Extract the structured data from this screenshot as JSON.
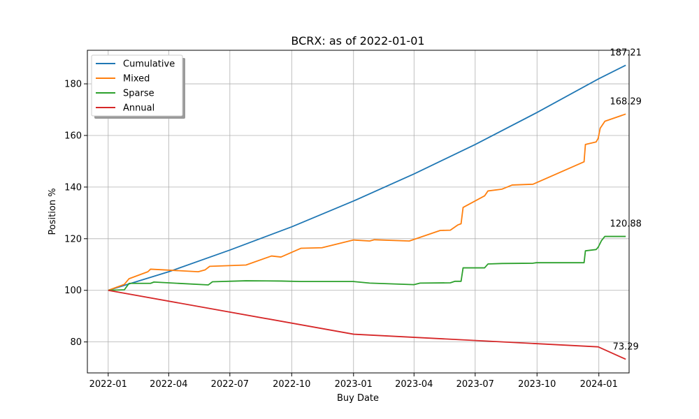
{
  "chart_data": {
    "type": "line",
    "title": "BCRX: as of 2022-01-01",
    "xlabel": "Buy Date",
    "ylabel": "Position %",
    "x_type": "date",
    "xlim": [
      "2021-12-01",
      "2024-02-15"
    ],
    "ylim": [
      68,
      193
    ],
    "x_ticks": [
      "2022-01",
      "2022-04",
      "2022-07",
      "2022-10",
      "2023-01",
      "2023-04",
      "2023-07",
      "2023-10",
      "2024-01"
    ],
    "y_ticks": [
      80,
      100,
      120,
      140,
      160,
      180
    ],
    "grid": true,
    "legend_position": "upper-left",
    "series": [
      {
        "name": "Cumulative",
        "color": "#1f77b4",
        "points": [
          [
            "2022-01-01",
            100
          ],
          [
            "2022-04-01",
            107.2
          ],
          [
            "2022-07-01",
            115.6
          ],
          [
            "2022-10-01",
            124.6
          ],
          [
            "2023-01-01",
            134.6
          ],
          [
            "2023-04-01",
            145.1
          ],
          [
            "2023-07-01",
            156.5
          ],
          [
            "2023-10-01",
            168.9
          ],
          [
            "2024-01-01",
            182.0
          ],
          [
            "2024-02-10",
            187.21
          ]
        ],
        "end_label": "187.21"
      },
      {
        "name": "Mixed",
        "color": "#ff7f0e",
        "points": [
          [
            "2022-01-01",
            100
          ],
          [
            "2022-01-25",
            102.3
          ],
          [
            "2022-02-01",
            104.5
          ],
          [
            "2022-03-01",
            107.2
          ],
          [
            "2022-03-05",
            108.2
          ],
          [
            "2022-05-15",
            107.2
          ],
          [
            "2022-05-25",
            107.9
          ],
          [
            "2022-06-01",
            109.3
          ],
          [
            "2022-07-25",
            109.8
          ],
          [
            "2022-09-01",
            113.3
          ],
          [
            "2022-09-15",
            112.9
          ],
          [
            "2022-10-15",
            116.3
          ],
          [
            "2022-11-15",
            116.5
          ],
          [
            "2023-01-01",
            119.5
          ],
          [
            "2023-01-25",
            119.1
          ],
          [
            "2023-02-01",
            119.6
          ],
          [
            "2023-03-25",
            119.1
          ],
          [
            "2023-05-10",
            123.2
          ],
          [
            "2023-05-25",
            123.3
          ],
          [
            "2023-06-05",
            125.3
          ],
          [
            "2023-06-10",
            125.8
          ],
          [
            "2023-06-13",
            132.1
          ],
          [
            "2023-07-15",
            136.6
          ],
          [
            "2023-07-20",
            138.5
          ],
          [
            "2023-08-10",
            139.2
          ],
          [
            "2023-08-25",
            140.8
          ],
          [
            "2023-09-25",
            141.1
          ],
          [
            "2023-12-10",
            149.8
          ],
          [
            "2023-12-12",
            156.5
          ],
          [
            "2023-12-28",
            157.5
          ],
          [
            "2023-12-31",
            158.9
          ],
          [
            "2024-01-03",
            162.8
          ],
          [
            "2024-01-10",
            165.5
          ],
          [
            "2024-02-10",
            168.29
          ]
        ],
        "end_label": "168.29"
      },
      {
        "name": "Sparse",
        "color": "#2ca02c",
        "points": [
          [
            "2022-01-01",
            100
          ],
          [
            "2022-01-25",
            100.2
          ],
          [
            "2022-02-01",
            102.7
          ],
          [
            "2022-03-05",
            102.7
          ],
          [
            "2022-03-10",
            103.2
          ],
          [
            "2022-05-30",
            102.1
          ],
          [
            "2022-06-05",
            103.3
          ],
          [
            "2022-07-25",
            103.7
          ],
          [
            "2022-09-15",
            103.6
          ],
          [
            "2022-10-15",
            103.4
          ],
          [
            "2023-01-01",
            103.4
          ],
          [
            "2023-01-25",
            102.8
          ],
          [
            "2023-04-01",
            102.2
          ],
          [
            "2023-04-10",
            102.8
          ],
          [
            "2023-05-25",
            102.9
          ],
          [
            "2023-06-01",
            103.5
          ],
          [
            "2023-06-10",
            103.5
          ],
          [
            "2023-06-13",
            108.7
          ],
          [
            "2023-07-15",
            108.7
          ],
          [
            "2023-07-20",
            110.2
          ],
          [
            "2023-08-10",
            110.4
          ],
          [
            "2023-09-25",
            110.5
          ],
          [
            "2023-09-30",
            110.7
          ],
          [
            "2023-12-10",
            110.7
          ],
          [
            "2023-12-12",
            115.3
          ],
          [
            "2023-12-28",
            115.8
          ],
          [
            "2023-12-31",
            116.7
          ],
          [
            "2024-01-05",
            119.3
          ],
          [
            "2024-01-10",
            120.9
          ],
          [
            "2024-02-10",
            120.88
          ]
        ],
        "end_label": "120.88"
      },
      {
        "name": "Annual",
        "color": "#d62728",
        "points": [
          [
            "2022-01-01",
            100
          ],
          [
            "2023-01-01",
            83.0
          ],
          [
            "2023-12-31",
            78.1
          ],
          [
            "2024-02-10",
            73.29
          ]
        ],
        "end_label": "73.29"
      }
    ]
  }
}
